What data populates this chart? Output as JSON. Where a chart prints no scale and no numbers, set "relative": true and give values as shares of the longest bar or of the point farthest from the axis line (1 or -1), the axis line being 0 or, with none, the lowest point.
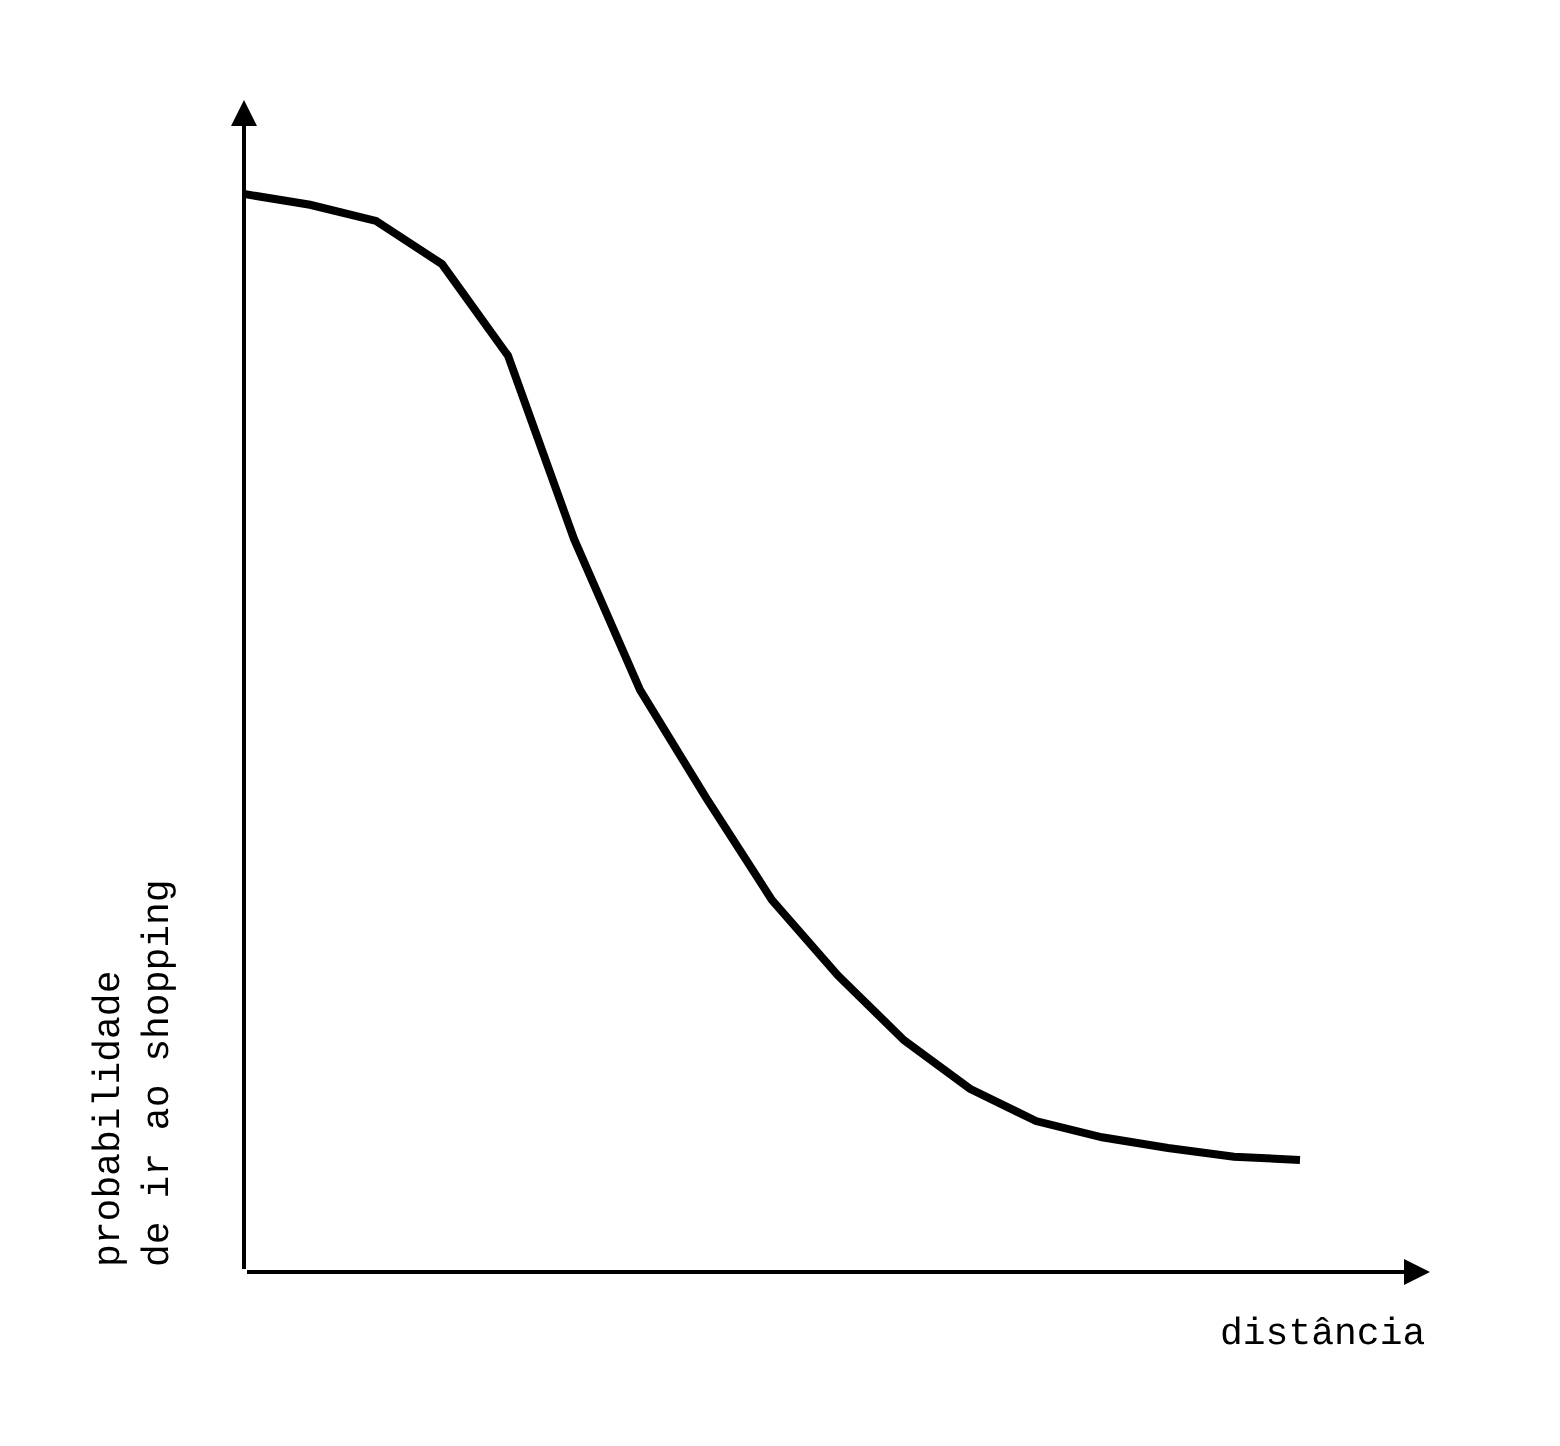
{
  "chart_data": {
    "type": "line",
    "relative": true,
    "xlabel": "distância",
    "ylabel": "probabilidade\nde ir ao shopping",
    "categories": [
      null,
      null,
      null,
      null,
      null,
      null,
      null,
      null,
      null,
      null,
      null,
      null,
      null,
      null,
      null,
      null,
      null
    ],
    "series": [
      {
        "color": "#000000",
        "values": [
          1.0,
          0.99,
          0.975,
          0.935,
          0.85,
          0.68,
          0.54,
          0.44,
          0.345,
          0.275,
          0.215,
          0.17,
          0.14,
          0.125,
          0.115,
          0.107,
          0.104
        ]
      }
    ],
    "marker": "none",
    "line_style": "solid"
  }
}
